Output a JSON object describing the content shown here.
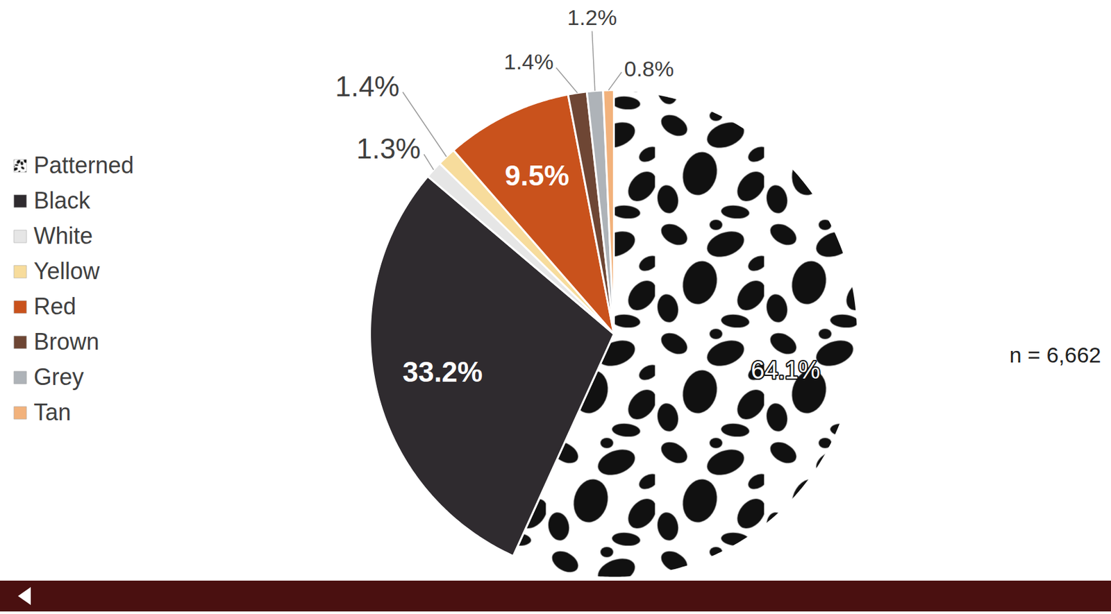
{
  "chart_data": {
    "type": "pie",
    "categories": [
      "Patterned",
      "Black",
      "White",
      "Yellow",
      "Red",
      "Brown",
      "Grey",
      "Tan"
    ],
    "values": [
      64.1,
      33.2,
      1.3,
      1.4,
      9.5,
      1.4,
      1.2,
      0.8
    ],
    "value_labels": [
      "64.1%",
      "33.2%",
      "1.3%",
      "1.4%",
      "9.5%",
      "1.4%",
      "1.2%",
      "0.8%"
    ],
    "colors": [
      "#111111",
      "#2f2b2f",
      "#e6e6e6",
      "#f7dc9c",
      "#c9521c",
      "#6e4634",
      "#aeb3b8",
      "#f2b27c"
    ],
    "data_labels": true,
    "legend": "left",
    "annotation": "n = 6,662"
  }
}
